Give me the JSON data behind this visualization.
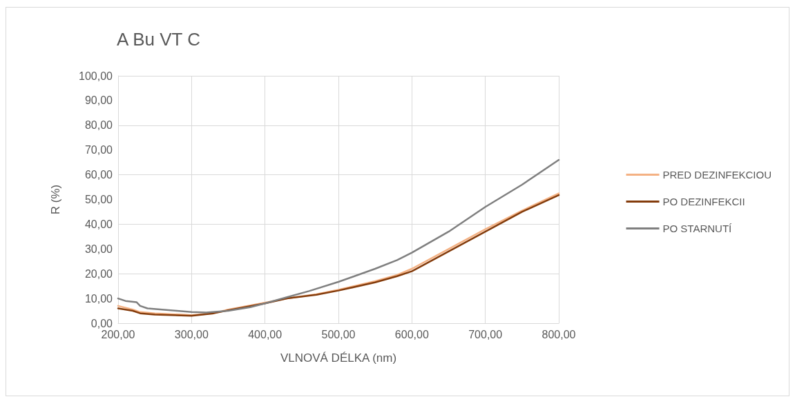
{
  "chart_data": {
    "type": "line",
    "title": "A Bu VT C",
    "xlabel": "VLNOVÁ DÉLKA (nm)",
    "ylabel": "R (%)",
    "xlim": [
      200,
      800
    ],
    "xticks": [
      {
        "value": 200,
        "label": "200,00"
      },
      {
        "value": 300,
        "label": "300,00"
      },
      {
        "value": 400,
        "label": "400,00"
      },
      {
        "value": 500,
        "label": "500,00"
      },
      {
        "value": 600,
        "label": "600,00"
      },
      {
        "value": 700,
        "label": "700,00"
      },
      {
        "value": 800,
        "label": "800,00"
      }
    ],
    "ylim": [
      0,
      100
    ],
    "yticks": [
      {
        "value": 0,
        "label": "0,00"
      },
      {
        "value": 10,
        "label": "10,00"
      },
      {
        "value": 20,
        "label": "20,00"
      },
      {
        "value": 30,
        "label": "30,00"
      },
      {
        "value": 40,
        "label": "40,00"
      },
      {
        "value": 50,
        "label": "50,00"
      },
      {
        "value": 60,
        "label": "60,00"
      },
      {
        "value": 70,
        "label": "70,00"
      },
      {
        "value": 80,
        "label": "80,00"
      },
      {
        "value": 90,
        "label": "90,00"
      },
      {
        "value": 100,
        "label": "100,00"
      }
    ],
    "x": [
      200,
      220,
      230,
      250,
      300,
      330,
      350,
      400,
      430,
      470,
      500,
      550,
      580,
      600,
      650,
      700,
      750,
      800
    ],
    "series": [
      {
        "name": "PRED DEZINFEKCIOU",
        "color": "#f4b183",
        "values": [
          7,
          5.5,
          4.5,
          4,
          3.3,
          4,
          5.5,
          8.3,
          10,
          11.7,
          13.5,
          17,
          19.5,
          22,
          30,
          38,
          45.5,
          52.5
        ]
      },
      {
        "name": "PO DEZINFEKCII",
        "color": "#843c0c",
        "values": [
          6,
          5,
          4,
          3.5,
          3,
          4,
          5.2,
          8,
          10,
          11.5,
          13.2,
          16.5,
          19,
          21,
          29,
          37,
          45,
          51.8
        ]
      },
      {
        "name": "PO STARNUTÍ",
        "color": "#7f7f7f",
        "x": [
          200,
          210,
          225,
          230,
          240,
          280,
          300,
          320,
          350,
          380,
          400,
          430,
          460,
          500,
          550,
          580,
          600,
          650,
          700,
          750,
          800
        ],
        "values": [
          10,
          9,
          8.5,
          7,
          6,
          5,
          4.5,
          4.3,
          5,
          6.5,
          8,
          10.5,
          13,
          16.7,
          22,
          25.5,
          28.5,
          37,
          47,
          56,
          66
        ]
      }
    ],
    "grid": true,
    "legend": "right",
    "marker": "none",
    "line_style": "solid"
  }
}
